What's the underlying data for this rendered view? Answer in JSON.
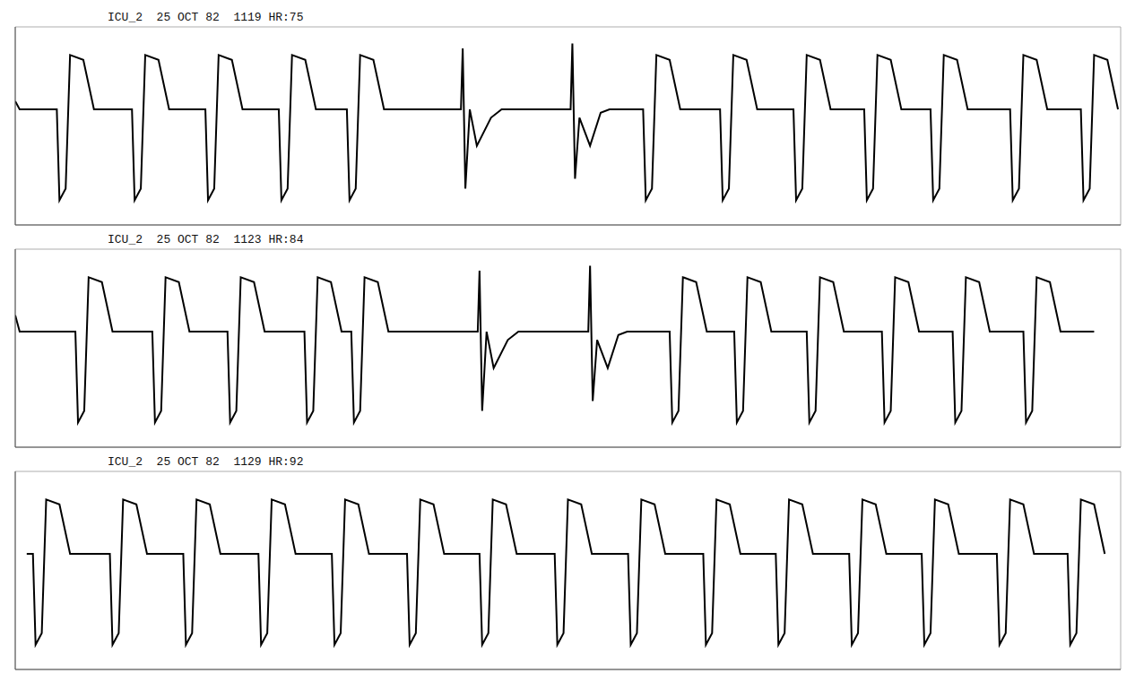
{
  "chart_data": [
    {
      "type": "line",
      "title": "ICU_2  25 OCT 82  1119 HR:75",
      "color": "#000000",
      "grid": true,
      "tick_labels": false,
      "xlim": [
        0,
        12.5
      ],
      "xticks": [
        0,
        0.5,
        1,
        1.5,
        2,
        2.5,
        3,
        3.5,
        4,
        4.5,
        5,
        5.5,
        6,
        6.5,
        7,
        7.5,
        8,
        8.5,
        9,
        9.5,
        10,
        10.5,
        11,
        11.5,
        12,
        12.5
      ],
      "ylim": [
        -0.7,
        0.5
      ],
      "yticks": [
        -0.7,
        -0.6,
        -0.5,
        -0.4,
        -0.3,
        -0.2,
        -0.1,
        0,
        0.1,
        0.2,
        0.3,
        0.4,
        0.5
      ],
      "x": [
        0,
        0.05,
        0.47,
        0.5,
        0.57,
        0.62,
        0.77,
        0.89,
        1.32,
        1.35,
        1.42,
        1.47,
        1.62,
        1.74,
        2.15,
        2.18,
        2.25,
        2.3,
        2.45,
        2.57,
        2.98,
        3.01,
        3.08,
        3.13,
        3.28,
        3.4,
        3.75,
        3.78,
        3.85,
        3.9,
        4.05,
        4.17,
        5.04,
        5.06,
        5.09,
        5.14,
        5.22,
        5.38,
        5.5,
        6.28,
        6.3,
        6.33,
        6.38,
        6.5,
        6.62,
        6.72,
        7.1,
        7.13,
        7.2,
        7.25,
        7.4,
        7.52,
        7.97,
        8.0,
        8.07,
        8.12,
        8.27,
        8.39,
        8.8,
        8.83,
        8.9,
        8.95,
        9.1,
        9.22,
        9.6,
        9.63,
        9.7,
        9.75,
        9.9,
        10.02,
        10.35,
        10.38,
        10.45,
        10.5,
        10.65,
        10.77,
        11.25,
        11.28,
        11.35,
        11.4,
        11.55,
        11.67,
        12.05,
        12.08,
        12.15,
        12.2,
        12.35,
        12.47
      ],
      "values": [
        0.05,
        0,
        0,
        -0.55,
        -0.48,
        0.33,
        0.3,
        0,
        0,
        -0.55,
        -0.48,
        0.33,
        0.3,
        0,
        0,
        -0.55,
        -0.48,
        0.33,
        0.3,
        0,
        0,
        -0.55,
        -0.48,
        0.33,
        0.3,
        0,
        0,
        -0.55,
        -0.48,
        0.33,
        0.3,
        0,
        0,
        0.37,
        -0.48,
        0,
        -0.22,
        -0.05,
        0,
        0,
        0.4,
        -0.42,
        -0.05,
        -0.22,
        -0.02,
        0,
        0,
        -0.55,
        -0.48,
        0.33,
        0.3,
        0,
        0,
        -0.55,
        -0.48,
        0.33,
        0.3,
        0,
        0,
        -0.55,
        -0.48,
        0.33,
        0.3,
        0,
        0,
        -0.55,
        -0.48,
        0.33,
        0.3,
        0,
        0,
        -0.55,
        -0.48,
        0.33,
        0.3,
        0,
        0,
        -0.55,
        -0.48,
        0.33,
        0.3,
        0,
        0,
        -0.55,
        -0.48,
        0.33,
        0.3,
        0
      ]
    },
    {
      "type": "line",
      "title": "ICU_2  25 OCT 82  1123 HR:84",
      "color": "#000000",
      "grid": true,
      "tick_labels": false,
      "xlim": [
        0,
        12.5
      ],
      "xticks": [
        0,
        0.5,
        1,
        1.5,
        2,
        2.5,
        3,
        3.5,
        4,
        4.5,
        5,
        5.5,
        6,
        6.5,
        7,
        7.5,
        8,
        8.5,
        9,
        9.5,
        10,
        10.5,
        11,
        11.5,
        12,
        12.5
      ],
      "ylim": [
        -0.7,
        0.5
      ],
      "yticks": [
        -0.7,
        -0.6,
        -0.5,
        -0.4,
        -0.3,
        -0.2,
        -0.1,
        0,
        0.1,
        0.2,
        0.3,
        0.4,
        0.5
      ],
      "x": [
        0,
        0.05,
        0.68,
        0.71,
        0.78,
        0.83,
        0.98,
        1.1,
        1.55,
        1.58,
        1.65,
        1.7,
        1.85,
        1.97,
        2.4,
        2.43,
        2.5,
        2.55,
        2.7,
        2.82,
        3.27,
        3.3,
        3.37,
        3.42,
        3.57,
        3.69,
        3.8,
        3.83,
        3.9,
        3.95,
        4.1,
        4.22,
        5.23,
        5.25,
        5.28,
        5.33,
        5.41,
        5.57,
        5.69,
        6.48,
        6.5,
        6.53,
        6.58,
        6.7,
        6.82,
        6.92,
        7.4,
        7.43,
        7.5,
        7.55,
        7.7,
        7.82,
        8.13,
        8.16,
        8.23,
        8.28,
        8.43,
        8.55,
        8.95,
        8.98,
        9.05,
        9.1,
        9.25,
        9.37,
        9.8,
        9.83,
        9.9,
        9.95,
        10.1,
        10.22,
        10.6,
        10.63,
        10.7,
        10.75,
        10.9,
        11.02,
        11.4,
        11.43,
        11.5,
        11.55,
        11.7,
        11.82,
        12.2
      ],
      "values": [
        0.1,
        0,
        0,
        -0.55,
        -0.48,
        0.33,
        0.3,
        0,
        0,
        -0.55,
        -0.48,
        0.33,
        0.3,
        0,
        0,
        -0.55,
        -0.48,
        0.33,
        0.3,
        0,
        0,
        -0.55,
        -0.48,
        0.33,
        0.3,
        0,
        0,
        -0.55,
        -0.48,
        0.33,
        0.3,
        0,
        0,
        0.37,
        -0.48,
        0,
        -0.22,
        -0.05,
        0,
        0,
        0.4,
        -0.42,
        -0.05,
        -0.22,
        -0.02,
        0,
        0,
        -0.55,
        -0.48,
        0.33,
        0.3,
        0,
        0,
        -0.55,
        -0.48,
        0.33,
        0.3,
        0,
        0,
        -0.55,
        -0.48,
        0.33,
        0.3,
        0,
        0,
        -0.55,
        -0.48,
        0.33,
        0.3,
        0,
        0,
        -0.55,
        -0.48,
        0.33,
        0.3,
        0,
        0,
        -0.55,
        -0.48,
        0.33,
        0.3,
        0,
        0
      ]
    },
    {
      "type": "line",
      "title": "ICU_2  25 OCT 82  1129 HR:92",
      "color": "#000000",
      "grid": true,
      "tick_labels": false,
      "xlim": [
        0,
        12.5
      ],
      "xticks": [
        0,
        0.5,
        1,
        1.5,
        2,
        2.5,
        3,
        3.5,
        4,
        4.5,
        5,
        5.5,
        6,
        6.5,
        7,
        7.5,
        8,
        8.5,
        9,
        9.5,
        10,
        10.5,
        11,
        11.5,
        12,
        12.5
      ],
      "ylim": [
        -0.7,
        0.5
      ],
      "yticks": [
        -0.7,
        -0.6,
        -0.5,
        -0.4,
        -0.3,
        -0.2,
        -0.1,
        0,
        0.1,
        0.2,
        0.3,
        0.4,
        0.5
      ],
      "x": [
        0.13,
        0.2,
        0.23,
        0.3,
        0.35,
        0.5,
        0.62,
        1.07,
        1.1,
        1.17,
        1.22,
        1.37,
        1.49,
        1.9,
        1.93,
        2.0,
        2.05,
        2.2,
        2.32,
        2.75,
        2.78,
        2.85,
        2.9,
        3.05,
        3.17,
        3.58,
        3.61,
        3.68,
        3.73,
        3.88,
        4.0,
        4.43,
        4.46,
        4.53,
        4.58,
        4.73,
        4.85,
        5.25,
        5.28,
        5.35,
        5.4,
        5.55,
        5.67,
        6.1,
        6.13,
        6.2,
        6.25,
        6.4,
        6.52,
        6.93,
        6.96,
        7.03,
        7.08,
        7.23,
        7.35,
        7.78,
        7.81,
        7.88,
        7.93,
        8.08,
        8.2,
        8.6,
        8.63,
        8.7,
        8.75,
        8.9,
        9.02,
        9.43,
        9.46,
        9.53,
        9.58,
        9.73,
        9.85,
        10.25,
        10.28,
        10.35,
        10.4,
        10.55,
        10.67,
        11.1,
        11.13,
        11.2,
        11.25,
        11.4,
        11.52,
        11.9,
        11.93,
        12.0,
        12.05,
        12.2,
        12.32
      ],
      "values": [
        0,
        0,
        -0.55,
        -0.48,
        0.33,
        0.3,
        0,
        0,
        -0.55,
        -0.48,
        0.33,
        0.3,
        0,
        0,
        -0.55,
        -0.48,
        0.33,
        0.3,
        0,
        0,
        -0.55,
        -0.48,
        0.33,
        0.3,
        0,
        0,
        -0.55,
        -0.48,
        0.33,
        0.3,
        0,
        0,
        -0.55,
        -0.48,
        0.33,
        0.3,
        0,
        0,
        -0.55,
        -0.48,
        0.33,
        0.3,
        0,
        0,
        -0.55,
        -0.48,
        0.33,
        0.3,
        0,
        0,
        -0.55,
        -0.48,
        0.33,
        0.3,
        0,
        0,
        -0.55,
        -0.48,
        0.33,
        0.3,
        0,
        0,
        -0.55,
        -0.48,
        0.33,
        0.3,
        0,
        0,
        -0.55,
        -0.48,
        0.33,
        0.3,
        0,
        0,
        -0.55,
        -0.48,
        0.33,
        0.3,
        0,
        0,
        -0.55,
        -0.48,
        0.33,
        0.3,
        0,
        0,
        -0.55,
        -0.48,
        0.33,
        0.3,
        0
      ]
    }
  ]
}
